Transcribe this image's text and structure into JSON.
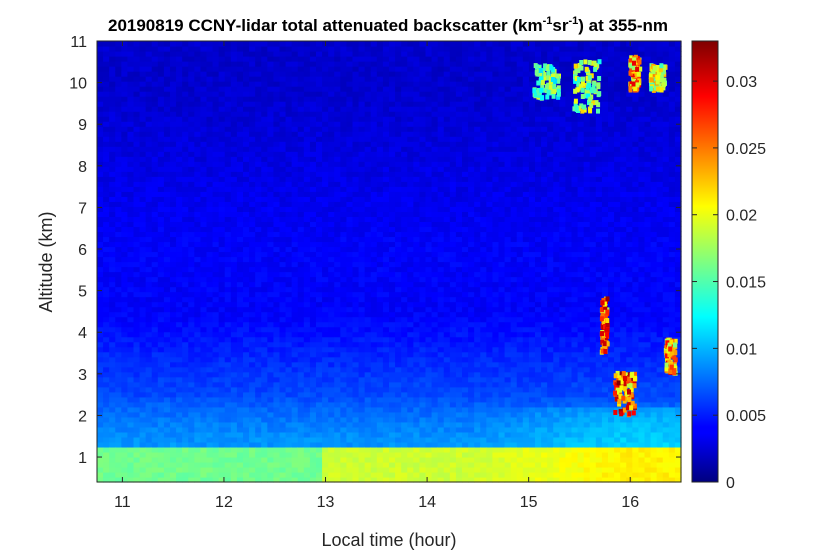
{
  "chart_data": {
    "type": "heatmap",
    "title": {
      "prefix": "20190819 CCNY-lidar total attenuated backscatter (km",
      "sup1": "-1",
      "mid": "sr",
      "sup2": "-1",
      "suffix": ") at 355-nm"
    },
    "xlabel": "Local time (hour)",
    "ylabel": "Altitude (km)",
    "xlim": [
      10.75,
      16.5
    ],
    "ylim": [
      0.4,
      11
    ],
    "x_ticks": [
      11,
      12,
      13,
      14,
      15,
      16
    ],
    "y_ticks": [
      1,
      2,
      3,
      4,
      5,
      6,
      7,
      8,
      9,
      10,
      11
    ],
    "colorbar": {
      "colormap": "jet",
      "clim": [
        0,
        0.033
      ],
      "ticks": [
        0,
        0.005,
        0.01,
        0.015,
        0.02,
        0.025,
        0.03
      ],
      "tick_labels": [
        "0",
        "0.005",
        "0.01",
        "0.015",
        "0.02",
        "0.025",
        "0.03"
      ]
    },
    "features": {
      "boundary_layer": {
        "altitude_km": [
          0.4,
          1.2
        ],
        "value_approx": 0.016
      },
      "aerosol_layer": {
        "altitude_km": [
          1.2,
          2.5
        ],
        "value_approx": 0.009
      },
      "free_troposphere_value_approx": 0.004,
      "high_clouds": [
        {
          "time": [
            15.05,
            15.3
          ],
          "altitude_km": [
            9.6,
            10.4
          ],
          "value_approx": 0.02
        },
        {
          "time": [
            15.45,
            15.7
          ],
          "altitude_km": [
            9.3,
            10.5
          ],
          "value_approx": 0.022
        },
        {
          "time": [
            16.0,
            16.1
          ],
          "altitude_km": [
            9.8,
            10.6
          ],
          "value_approx": 0.03
        },
        {
          "time": [
            16.2,
            16.35
          ],
          "altitude_km": [
            9.8,
            10.4
          ],
          "value_approx": 0.025
        }
      ],
      "low_clouds": [
        {
          "time": [
            15.72,
            15.78
          ],
          "altitude_km": [
            3.5,
            4.8
          ],
          "value_approx": 0.033
        },
        {
          "time": [
            15.85,
            16.05
          ],
          "altitude_km": [
            2.0,
            3.0
          ],
          "value_approx": 0.033
        },
        {
          "time": [
            16.35,
            16.45
          ],
          "altitude_km": [
            3.0,
            3.8
          ],
          "value_approx": 0.03
        }
      ]
    }
  }
}
